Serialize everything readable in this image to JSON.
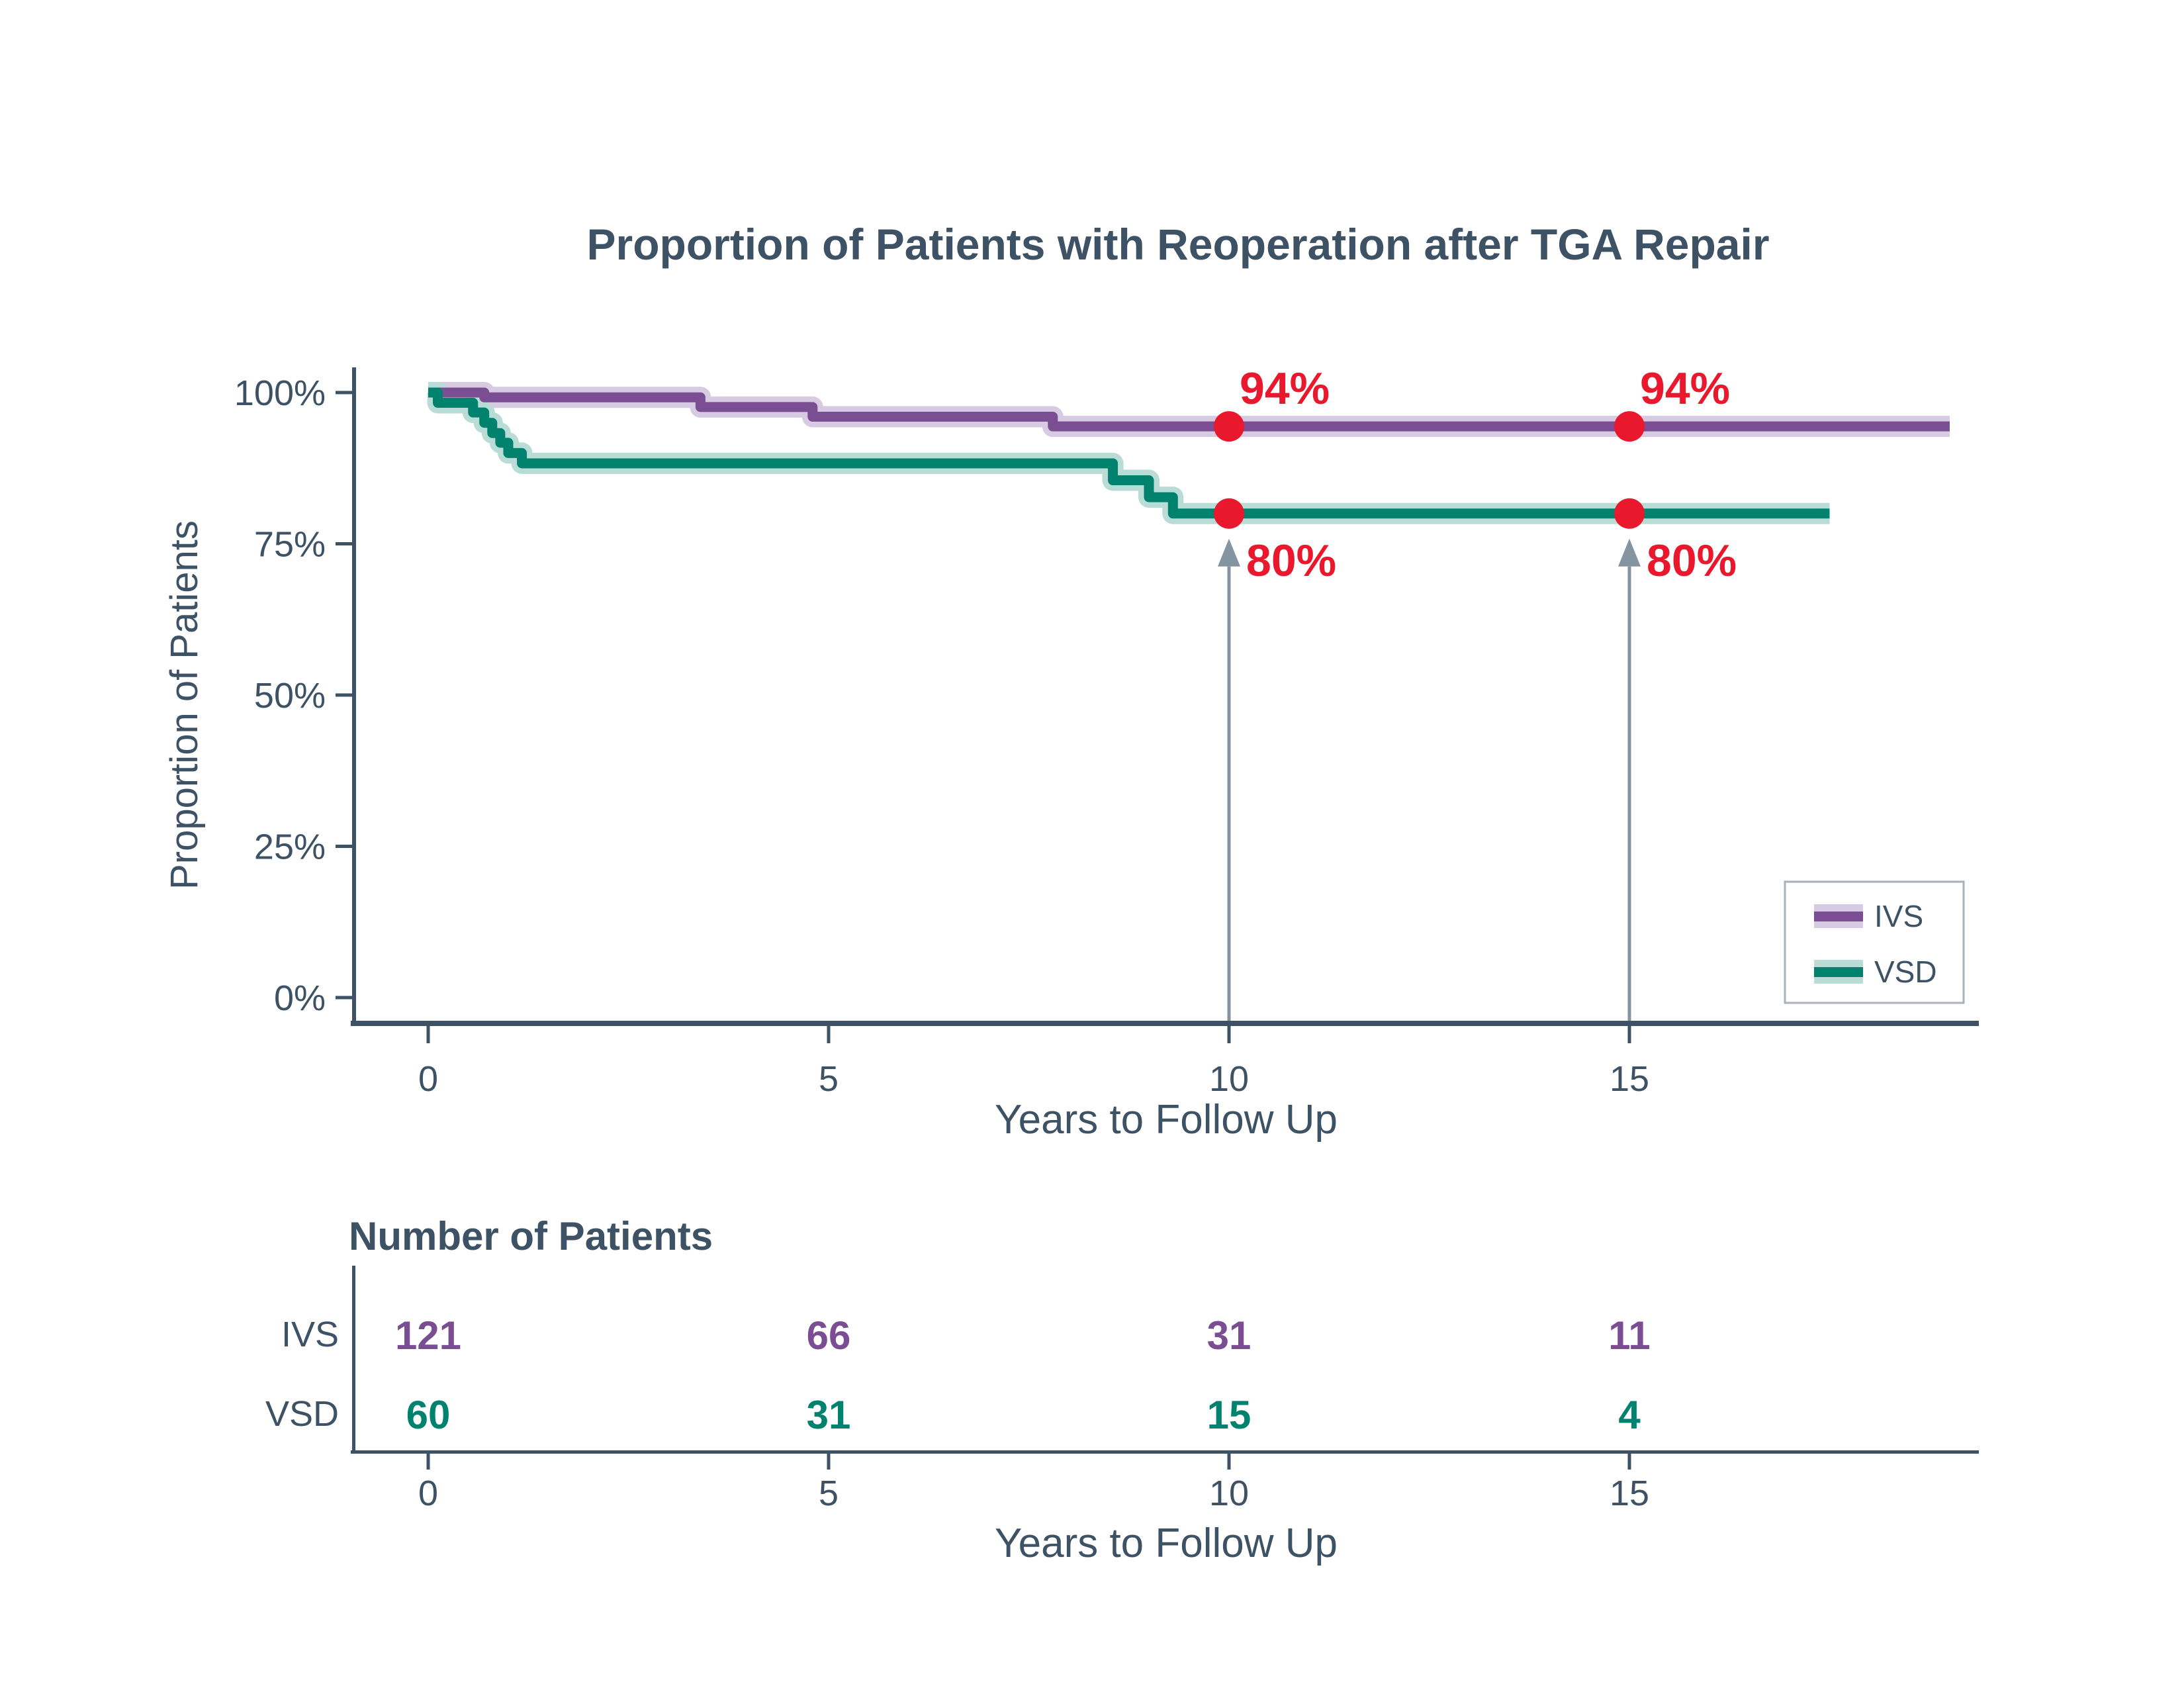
{
  "title": "Proportion of Patients with Reoperation after TGA Repair",
  "colors": {
    "slate": "#3E5266",
    "ivs": "#7B4E93",
    "ivs_band": "#D6CBE2",
    "vsd": "#00826F",
    "vsd_band": "#B9DCD6",
    "red": "#E9182C",
    "arrow_gray": "#8494A1",
    "legend_border": "#A9B2BA"
  },
  "chart_data": {
    "type": "line",
    "subtype": "kaplan-meier-step",
    "title": "Proportion of Patients with Reoperation after TGA Repair",
    "xlabel": "Years to Follow Up",
    "ylabel": "Proportion of Patients",
    "xlim": [
      0,
      19.4
    ],
    "ylim": [
      0,
      100
    ],
    "grid": false,
    "legend_position": "bottom-right",
    "x_ticks": [
      {
        "v": 0,
        "label": "0"
      },
      {
        "v": 5,
        "label": "5"
      },
      {
        "v": 10,
        "label": "10"
      },
      {
        "v": 15,
        "label": "15"
      }
    ],
    "y_ticks": [
      {
        "v": 0,
        "label": "0%"
      },
      {
        "v": 25,
        "label": "25%"
      },
      {
        "v": 50,
        "label": "50%"
      },
      {
        "v": 75,
        "label": "75%"
      },
      {
        "v": 100,
        "label": "100%"
      }
    ],
    "series": [
      {
        "name": "IVS",
        "color": "#7B4E93",
        "band_color": "#D6CBE2",
        "end_x": 19.0,
        "points": [
          [
            0,
            100
          ],
          [
            0.7,
            99.2
          ],
          [
            3.4,
            97.6
          ],
          [
            4.8,
            96.0
          ],
          [
            7.8,
            94.4
          ]
        ]
      },
      {
        "name": "VSD",
        "color": "#00826F",
        "band_color": "#B9DCD6",
        "end_x": 17.5,
        "points": [
          [
            0,
            100
          ],
          [
            0.12,
            98.3
          ],
          [
            0.56,
            96.7
          ],
          [
            0.7,
            95.0
          ],
          [
            0.8,
            93.3
          ],
          [
            0.9,
            91.7
          ],
          [
            1.0,
            90.0
          ],
          [
            1.17,
            88.3
          ],
          [
            8.55,
            85.5
          ],
          [
            9.0,
            82.7
          ],
          [
            9.3,
            80.0
          ]
        ]
      }
    ],
    "annotations": [
      {
        "series": "IVS",
        "x": 10,
        "label": "94%",
        "arrow": false
      },
      {
        "series": "IVS",
        "x": 15,
        "label": "94%",
        "arrow": false
      },
      {
        "series": "VSD",
        "x": 10,
        "label": "80%",
        "arrow": true
      },
      {
        "series": "VSD",
        "x": 15,
        "label": "80%",
        "arrow": true
      }
    ]
  },
  "risk_table": {
    "title": "Number of Patients",
    "xlabel": "Years to Follow Up",
    "x_ticks": [
      {
        "v": 0,
        "label": "0"
      },
      {
        "v": 5,
        "label": "5"
      },
      {
        "v": 10,
        "label": "10"
      },
      {
        "v": 15,
        "label": "15"
      }
    ],
    "rows": [
      {
        "name": "IVS",
        "color": "#7B4E93",
        "values": [
          "121",
          "66",
          "31",
          "11"
        ]
      },
      {
        "name": "VSD",
        "color": "#00826F",
        "values": [
          "60",
          "31",
          "15",
          "4"
        ]
      }
    ]
  },
  "legend": {
    "items": [
      {
        "label": "IVS"
      },
      {
        "label": "VSD"
      }
    ]
  }
}
